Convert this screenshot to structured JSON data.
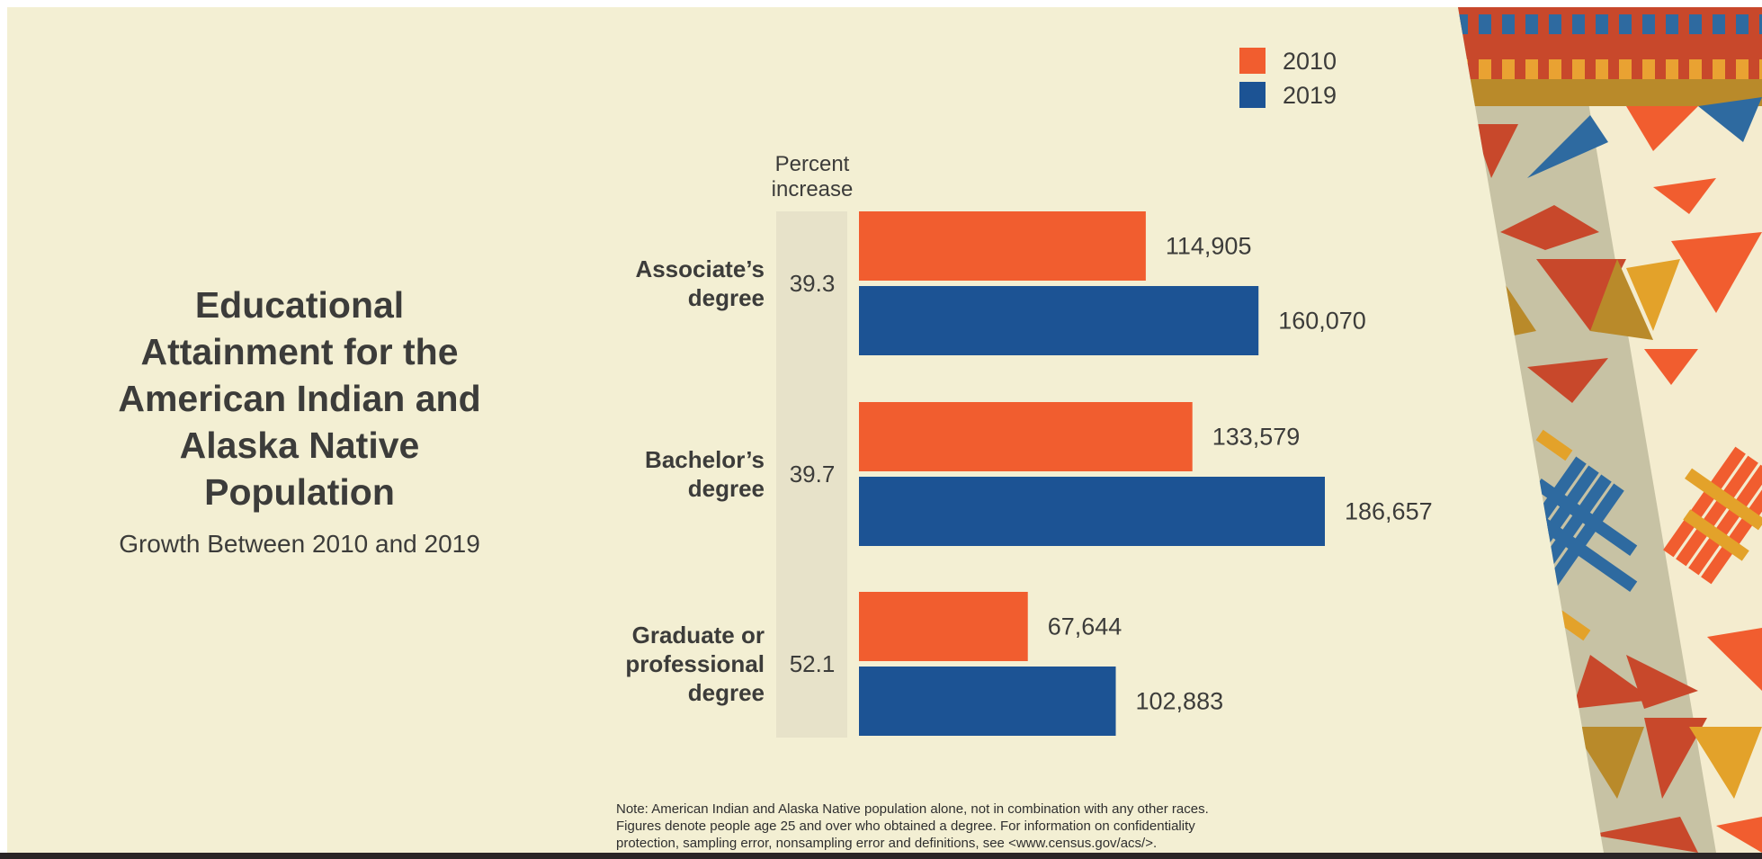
{
  "title": "Educational Attainment for the American Indian and Alaska Native Population",
  "title_lines": [
    "Educational",
    "Attainment for the",
    "American Indian and",
    "Alaska Native",
    "Population"
  ],
  "subtitle": "Growth Between 2010 and 2019",
  "note_lines": [
    "Note: American Indian and Alaska Native population alone, not in combination with any other races.",
    "Figures denote people age 25 and over who obtained a degree. For information on confidentiality",
    "protection, sampling error, nonsampling error and definitions, see <www.census.gov/acs/>."
  ],
  "colors": {
    "background": "#f3efd3",
    "series_2010": "#f15d2f",
    "series_2019": "#1c5394",
    "percent_column": "#e7e2c9",
    "text": "#3c3c3a"
  },
  "chart_data": {
    "type": "bar",
    "orientation": "horizontal",
    "percent_column_header": [
      "Percent",
      "increase"
    ],
    "categories": [
      {
        "label_lines": [
          "Associate’s",
          "degree"
        ],
        "label": "Associate’s degree"
      },
      {
        "label_lines": [
          "Bachelor’s",
          "degree"
        ],
        "label": "Bachelor’s degree"
      },
      {
        "label_lines": [
          "Graduate or",
          "professional",
          "degree"
        ],
        "label": "Graduate or professional degree"
      }
    ],
    "series": [
      {
        "name": "2010",
        "values": [
          114905,
          133579,
          67644
        ],
        "value_labels": [
          "114,905",
          "133,579",
          "67,644"
        ]
      },
      {
        "name": "2019",
        "values": [
          160070,
          186657,
          102883
        ],
        "value_labels": [
          "160,070",
          "186,657",
          "102,883"
        ]
      }
    ],
    "percent_increase": [
      "39.3",
      "39.7",
      "52.1"
    ],
    "legend": {
      "placement": "top-right"
    },
    "grid": false,
    "xlim": [
      0,
      186657
    ]
  }
}
